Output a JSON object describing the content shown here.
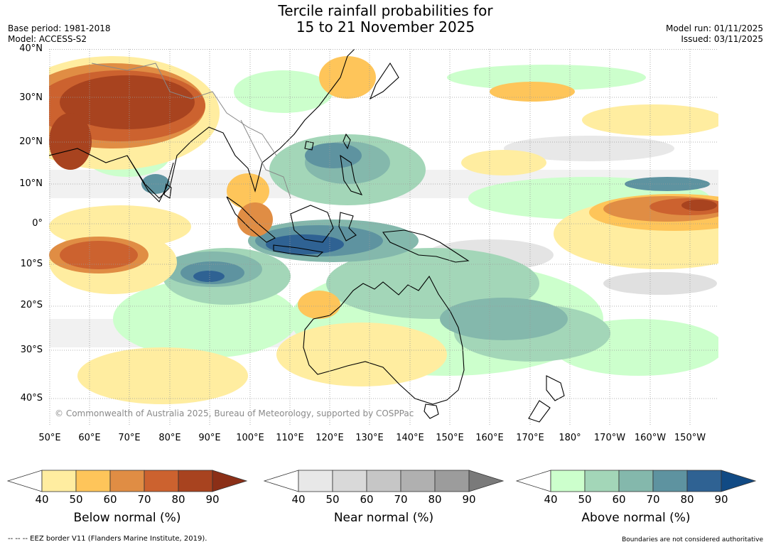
{
  "title": {
    "line1": "Tercile rainfall probabilities for",
    "line2": "15 to 21 November 2025"
  },
  "meta": {
    "base_period": "Base period: 1981-2018",
    "model": "Model: ACCESS-S2",
    "model_run": "Model run: 01/11/2025",
    "issued": "Issued: 03/11/2025"
  },
  "map": {
    "lat_labels": [
      "40°N",
      "30°N",
      "20°N",
      "10°N",
      "0°",
      "10°S",
      "20°S",
      "30°S",
      "40°S"
    ],
    "lon_labels": [
      "50°E",
      "60°E",
      "70°E",
      "80°E",
      "90°E",
      "100°E",
      "110°E",
      "120°E",
      "130°E",
      "140°E",
      "150°E",
      "160°E",
      "170°E",
      "180°",
      "170°W",
      "160°W",
      "150°W"
    ],
    "copyright": "© Commonwealth of Australia 2025, Bureau of Meteorology, supported by COSPPac"
  },
  "colorbars": [
    {
      "title": "Below normal (%)",
      "ticks": [
        "40",
        "50",
        "60",
        "70",
        "80",
        "90"
      ],
      "colors": [
        "#ffeda0",
        "#fec55a",
        "#e08d44",
        "#cc622f",
        "#a8431f"
      ],
      "arrow_color": "#8b2f17"
    },
    {
      "title": "Near normal (%)",
      "ticks": [
        "40",
        "50",
        "60",
        "70",
        "80",
        "90"
      ],
      "colors": [
        "#e8e8e8",
        "#d9d9d9",
        "#c6c6c6",
        "#b0b0b0",
        "#9c9c9c"
      ],
      "arrow_color": "#7a7a7a"
    },
    {
      "title": "Above normal (%)",
      "ticks": [
        "40",
        "50",
        "60",
        "70",
        "80",
        "90"
      ],
      "colors": [
        "#ccffcc",
        "#a3d6b8",
        "#84b8ac",
        "#5e93a0",
        "#2f6293"
      ],
      "arrow_color": "#114a84"
    }
  ],
  "footer": {
    "left": "--  --  -- EEZ border V11 (Flanders Marine Institute, 2019).",
    "right": "Boundaries are not considered authoritative"
  }
}
